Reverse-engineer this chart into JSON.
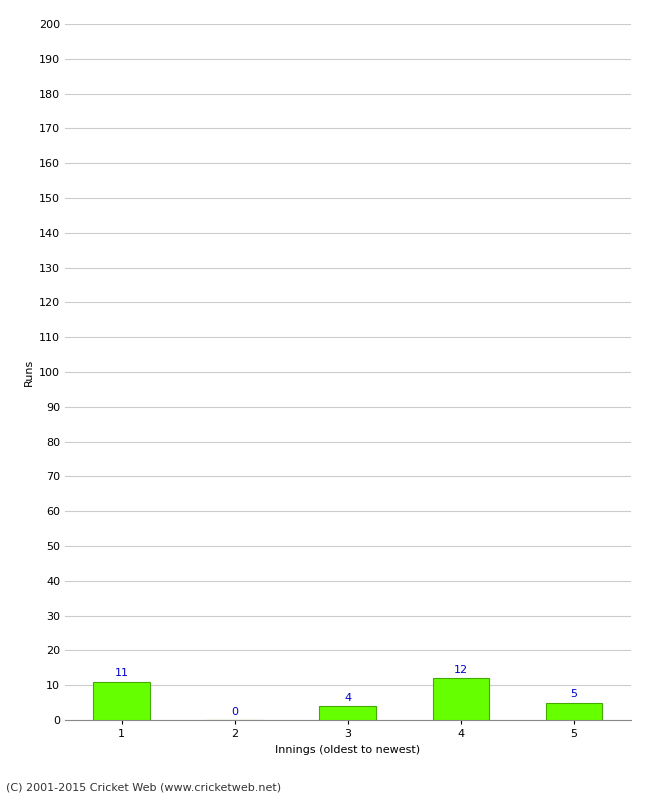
{
  "innings": [
    1,
    2,
    3,
    4,
    5
  ],
  "runs": [
    11,
    0,
    4,
    12,
    5
  ],
  "bar_color": "#66ff00",
  "bar_edge_color": "#44aa00",
  "value_color": "#0000cc",
  "xlabel": "Innings (oldest to newest)",
  "ylabel": "Runs",
  "ylim": [
    0,
    200
  ],
  "yticks": [
    0,
    10,
    20,
    30,
    40,
    50,
    60,
    70,
    80,
    90,
    100,
    110,
    120,
    130,
    140,
    150,
    160,
    170,
    180,
    190,
    200
  ],
  "footer": "(C) 2001-2015 Cricket Web (www.cricketweb.net)",
  "background_color": "#ffffff",
  "grid_color": "#cccccc",
  "bar_width": 0.5,
  "value_fontsize": 8,
  "label_fontsize": 8,
  "tick_fontsize": 8,
  "footer_fontsize": 8
}
